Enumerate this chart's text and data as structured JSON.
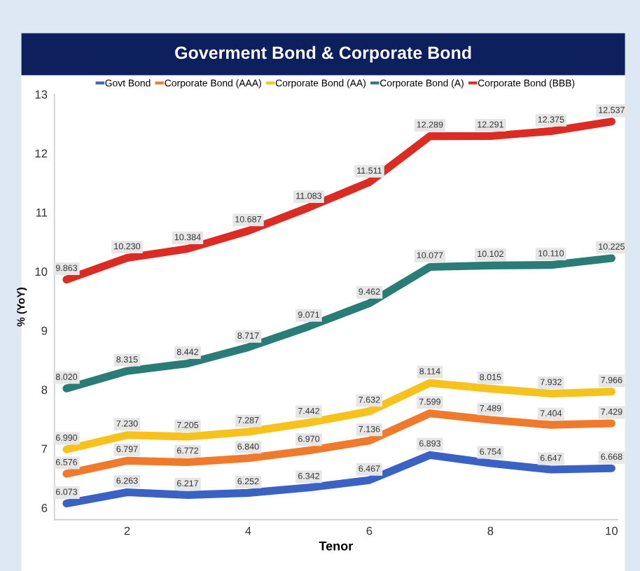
{
  "chart_data": {
    "type": "line",
    "title": "Goverment Bond & Corporate Bond",
    "xlabel": "Tenor",
    "ylabel": "% (YoY)",
    "x": [
      1,
      2,
      3,
      4,
      5,
      6,
      7,
      8,
      9,
      10
    ],
    "xlim": [
      0.8,
      10.1
    ],
    "xticks": [
      2,
      4,
      6,
      8,
      10
    ],
    "ylim": [
      5.8,
      13
    ],
    "yticks": [
      6,
      7,
      8,
      9,
      10,
      11,
      12,
      13
    ],
    "series": [
      {
        "name": "Govt Bond",
        "color": "#3a62c4",
        "values": [
          6.073,
          6.263,
          6.217,
          6.252,
          6.342,
          6.467,
          6.893,
          6.754,
          6.647,
          6.668
        ],
        "value_labels": [
          "6.073",
          "6.263",
          "6.217",
          "6.252",
          "6.342",
          "6.467",
          "6.893",
          "6.754",
          "6.647",
          "6.668"
        ]
      },
      {
        "name": "Corporate Bond (AAA)",
        "color": "#ef7a2c",
        "values": [
          6.576,
          6.797,
          6.772,
          6.84,
          6.97,
          7.136,
          7.599,
          7.489,
          7.404,
          7.429
        ],
        "value_labels": [
          "6.576",
          "6.797",
          "6.772",
          "6.840",
          "6.970",
          "7.136",
          "7.599",
          "7.489",
          "7.404",
          "7.429"
        ]
      },
      {
        "name": "Corporate Bond (AA)",
        "color": "#f7c21b",
        "values": [
          6.99,
          7.23,
          7.205,
          7.287,
          7.442,
          7.632,
          8.114,
          8.015,
          7.932,
          7.966
        ],
        "value_labels": [
          "6.990",
          "7.230",
          "7.205",
          "7.287",
          "7.442",
          "7.632",
          "8.114",
          "8.015",
          "7.932",
          "7.966"
        ]
      },
      {
        "name": "Corporate Bond (A)",
        "color": "#2a7d76",
        "values": [
          8.02,
          8.315,
          8.442,
          8.717,
          9.071,
          9.462,
          10.077,
          10.102,
          10.11,
          10.225
        ],
        "value_labels": [
          "8.020",
          "8.315",
          "8.442",
          "8.717",
          "9.071",
          "9.462",
          "10.077",
          "10.102",
          "10.110",
          "10.225"
        ]
      },
      {
        "name": "Corporate Bond (BBB)",
        "color": "#dc2b22",
        "values": [
          9.863,
          10.23,
          10.384,
          10.687,
          11.083,
          11.511,
          12.289,
          12.291,
          12.375,
          12.537
        ],
        "value_labels": [
          "9.863",
          "10.230",
          "10.384",
          "10.687",
          "11.083",
          "11.511",
          "12.289",
          "12.291",
          "12.375",
          "12.537"
        ]
      }
    ],
    "grid": false,
    "legend": "top",
    "marker": "none",
    "line_style": "solid"
  }
}
